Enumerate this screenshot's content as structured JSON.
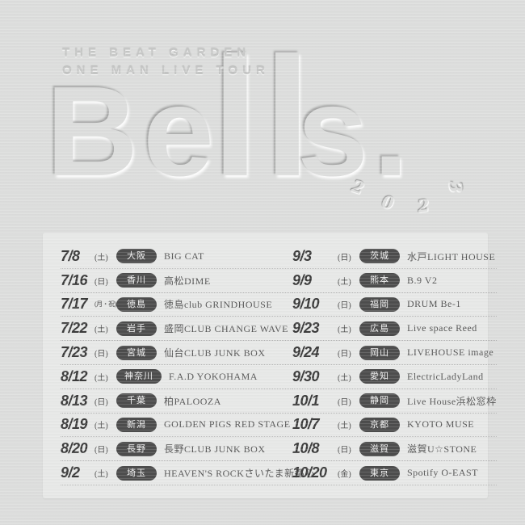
{
  "colors": {
    "background_outer": "#dcdddc",
    "background_panel": "#e7e8e7",
    "badge_bg": "#4d4d4d",
    "badge_text": "#f1f1f1",
    "date_text": "#3b3b3b",
    "venue_text": "#565656"
  },
  "header": {
    "tour_line1": "THE BEAT GARDEN",
    "tour_line2": "ONE MAN LIVE TOUR",
    "year_digits": [
      "2",
      "0",
      "2",
      "3"
    ]
  },
  "logo": {
    "text": "Bells.",
    "part1": "Be",
    "part2": "ll",
    "part3": "s."
  },
  "schedule": {
    "left": [
      {
        "date": "7/8",
        "dow": "(土)",
        "pref": "大阪",
        "venue": "BIG CAT"
      },
      {
        "date": "7/16",
        "dow": "(日)",
        "pref": "香川",
        "venue": "高松DIME"
      },
      {
        "date": "7/17",
        "dow": "(月・祝)",
        "pref": "徳島",
        "venue": "徳島club GRINDHOUSE"
      },
      {
        "date": "7/22",
        "dow": "(土)",
        "pref": "岩手",
        "venue": "盛岡CLUB CHANGE WAVE"
      },
      {
        "date": "7/23",
        "dow": "(日)",
        "pref": "宮城",
        "venue": "仙台CLUB JUNK BOX"
      },
      {
        "date": "8/12",
        "dow": "(土)",
        "pref": "神奈川",
        "venue": "F.A.D YOKOHAMA"
      },
      {
        "date": "8/13",
        "dow": "(日)",
        "pref": "千葉",
        "venue": "柏PALOOZA"
      },
      {
        "date": "8/19",
        "dow": "(土)",
        "pref": "新潟",
        "venue": "GOLDEN PIGS RED STAGE"
      },
      {
        "date": "8/20",
        "dow": "(日)",
        "pref": "長野",
        "venue": "長野CLUB JUNK BOX"
      },
      {
        "date": "9/2",
        "dow": "(土)",
        "pref": "埼玉",
        "venue": "HEAVEN'S ROCKさいたま新都心"
      }
    ],
    "right": [
      {
        "date": "9/3",
        "dow": "(日)",
        "pref": "茨城",
        "venue": "水戸LIGHT HOUSE"
      },
      {
        "date": "9/9",
        "dow": "(土)",
        "pref": "熊本",
        "venue": "B.9 V2"
      },
      {
        "date": "9/10",
        "dow": "(日)",
        "pref": "福岡",
        "venue": "DRUM Be-1"
      },
      {
        "date": "9/23",
        "dow": "(土)",
        "pref": "広島",
        "venue": "Live space Reed"
      },
      {
        "date": "9/24",
        "dow": "(日)",
        "pref": "岡山",
        "venue": "LIVEHOUSE image"
      },
      {
        "date": "9/30",
        "dow": "(土)",
        "pref": "愛知",
        "venue": "ElectricLadyLand"
      },
      {
        "date": "10/1",
        "dow": "(日)",
        "pref": "静岡",
        "venue": "Live House浜松窓枠"
      },
      {
        "date": "10/7",
        "dow": "(土)",
        "pref": "京都",
        "venue": "KYOTO MUSE"
      },
      {
        "date": "10/8",
        "dow": "(日)",
        "pref": "滋賀",
        "venue": "滋賀U☆STONE"
      },
      {
        "date": "10/20",
        "dow": "(金)",
        "pref": "東京",
        "venue": "Spotify O-EAST"
      }
    ]
  }
}
